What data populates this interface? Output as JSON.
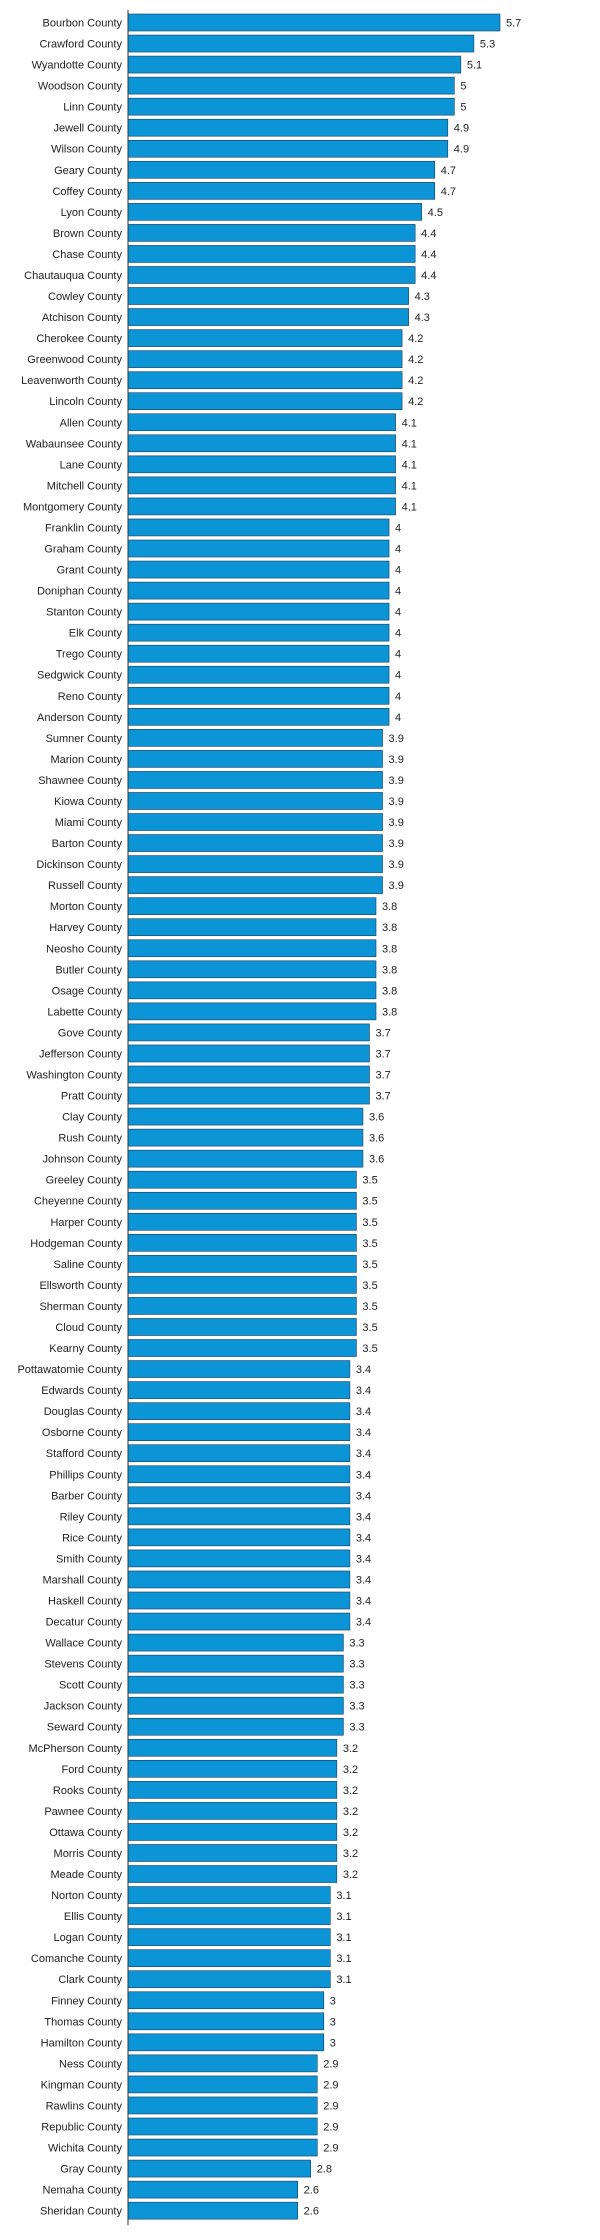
{
  "chart_data": {
    "type": "bar",
    "orientation": "horizontal",
    "bar_color": "#0b95d6",
    "xlim": [
      0,
      5.7
    ],
    "grid": false,
    "title": "",
    "xlabel": "",
    "ylabel": "",
    "categories": [
      "Bourbon County",
      "Crawford County",
      "Wyandotte County",
      "Woodson County",
      "Linn County",
      "Jewell County",
      "Wilson County",
      "Geary County",
      "Coffey County",
      "Lyon County",
      "Brown County",
      "Chase County",
      "Chautauqua County",
      "Cowley County",
      "Atchison County",
      "Cherokee County",
      "Greenwood County",
      "Leavenworth County",
      "Lincoln County",
      "Allen County",
      "Wabaunsee County",
      "Lane County",
      "Mitchell County",
      "Montgomery County",
      "Franklin County",
      "Graham County",
      "Grant County",
      "Doniphan County",
      "Stanton County",
      "Elk County",
      "Trego County",
      "Sedgwick County",
      "Reno County",
      "Anderson County",
      "Sumner County",
      "Marion County",
      "Shawnee County",
      "Kiowa County",
      "Miami County",
      "Barton County",
      "Dickinson County",
      "Russell County",
      "Morton County",
      "Harvey County",
      "Neosho County",
      "Butler County",
      "Osage County",
      "Labette County",
      "Gove County",
      "Jefferson County",
      "Washington County",
      "Pratt County",
      "Clay County",
      "Rush County",
      "Johnson County",
      "Greeley County",
      "Cheyenne County",
      "Harper County",
      "Hodgeman County",
      "Saline County",
      "Ellsworth County",
      "Sherman County",
      "Cloud County",
      "Kearny County",
      "Pottawatomie County",
      "Edwards County",
      "Douglas County",
      "Osborne County",
      "Stafford County",
      "Phillips County",
      "Barber County",
      "Riley County",
      "Rice County",
      "Smith County",
      "Marshall County",
      "Haskell County",
      "Decatur County",
      "Wallace County",
      "Stevens County",
      "Scott County",
      "Jackson County",
      "Seward County",
      "McPherson County",
      "Ford County",
      "Rooks County",
      "Pawnee County",
      "Ottawa County",
      "Morris County",
      "Meade County",
      "Norton County",
      "Ellis County",
      "Logan County",
      "Comanche County",
      "Clark County",
      "Finney County",
      "Thomas County",
      "Hamilton County",
      "Ness County",
      "Kingman County",
      "Rawlins County",
      "Republic County",
      "Wichita County",
      "Gray County",
      "Nemaha County",
      "Sheridan County"
    ],
    "values": [
      5.7,
      5.3,
      5.1,
      5,
      5,
      4.9,
      4.9,
      4.7,
      4.7,
      4.5,
      4.4,
      4.4,
      4.4,
      4.3,
      4.3,
      4.2,
      4.2,
      4.2,
      4.2,
      4.1,
      4.1,
      4.1,
      4.1,
      4.1,
      4,
      4,
      4,
      4,
      4,
      4,
      4,
      4,
      4,
      4,
      3.9,
      3.9,
      3.9,
      3.9,
      3.9,
      3.9,
      3.9,
      3.9,
      3.8,
      3.8,
      3.8,
      3.8,
      3.8,
      3.8,
      3.7,
      3.7,
      3.7,
      3.7,
      3.6,
      3.6,
      3.6,
      3.5,
      3.5,
      3.5,
      3.5,
      3.5,
      3.5,
      3.5,
      3.5,
      3.5,
      3.4,
      3.4,
      3.4,
      3.4,
      3.4,
      3.4,
      3.4,
      3.4,
      3.4,
      3.4,
      3.4,
      3.4,
      3.4,
      3.3,
      3.3,
      3.3,
      3.3,
      3.3,
      3.2,
      3.2,
      3.2,
      3.2,
      3.2,
      3.2,
      3.2,
      3.1,
      3.1,
      3.1,
      3.1,
      3.1,
      3,
      3,
      3,
      2.9,
      2.9,
      2.9,
      2.9,
      2.9,
      2.8,
      2.6,
      2.6
    ]
  }
}
